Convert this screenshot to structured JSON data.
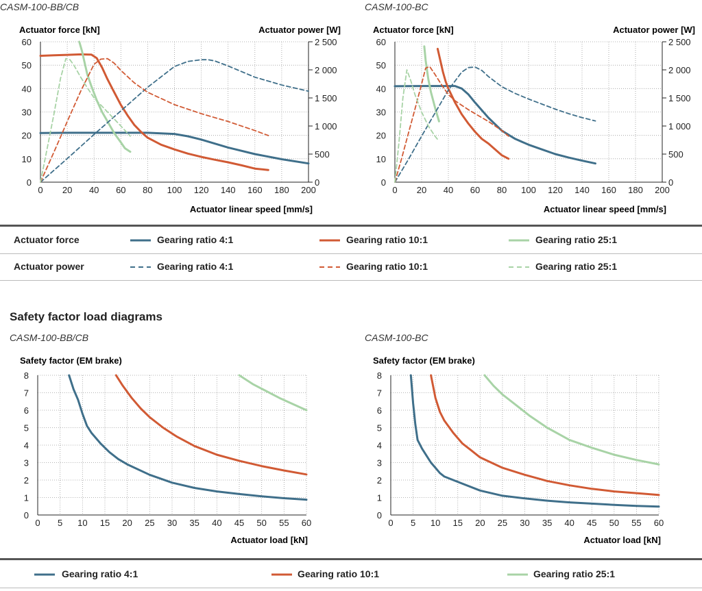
{
  "colors": {
    "g4": "#3f6f8a",
    "g10": "#d15a34",
    "g25": "#a8d3a6",
    "grid": "#9a9a9a"
  },
  "top_charts": [
    {
      "title": "CASM-100-BB/CB",
      "left_axis_label": "Actuator force [kN]",
      "right_axis_label": "Actuator power [W]",
      "x_axis_label": "Actuator linear speed [mm/s]"
    },
    {
      "title": "CASM-100-BC",
      "left_axis_label": "Actuator force [kN]",
      "right_axis_label": "Actuator power [W]",
      "x_axis_label": "Actuator linear speed [mm/s]"
    }
  ],
  "top_legend": {
    "row1_label": "Actuator force",
    "row2_label": "Actuator power",
    "g4": "Gearing ratio 4:1",
    "g10": "Gearing ratio 10:1",
    "g25": "Gearing ratio 25:1"
  },
  "section_heading": "Safety factor load diagrams",
  "bottom_charts": [
    {
      "title": "CASM-100-BB/CB",
      "y_axis_label": "Safety factor (EM brake)",
      "x_axis_label": "Actuator load [kN]"
    },
    {
      "title": "CASM-100-BC",
      "y_axis_label": "Safety factor (EM brake)",
      "x_axis_label": "Actuator load [kN]"
    }
  ],
  "bottom_legend": {
    "g4": "Gearing ratio 4:1",
    "g10": "Gearing ratio 10:1",
    "g25": "Gearing ratio 25:1"
  },
  "chart_data": [
    {
      "type": "line",
      "title": "CASM-100-BB/CB",
      "xlabel": "Actuator linear speed [mm/s]",
      "ylabel": "Actuator force [kN]",
      "y2label": "Actuator power [W]",
      "xlim": [
        0,
        200
      ],
      "ylim": [
        0,
        60
      ],
      "y2lim": [
        0,
        2500
      ],
      "xticks": [
        0,
        20,
        40,
        60,
        80,
        100,
        120,
        140,
        160,
        180,
        200
      ],
      "yticks": [
        0,
        10,
        20,
        30,
        40,
        50,
        60
      ],
      "y2ticks": [
        0,
        500,
        1000,
        1500,
        2000,
        2500
      ],
      "y2ticklabels": [
        "0",
        "500",
        "1 000",
        "1 500",
        "2 000",
        "2 500"
      ],
      "series": [
        {
          "name": "Actuator force – Gearing ratio 4:1",
          "color_key": "g4",
          "dash": false,
          "axis": "left",
          "x": [
            0,
            20,
            40,
            60,
            80,
            100,
            110,
            120,
            140,
            160,
            180,
            200
          ],
          "y": [
            21,
            21.1,
            21.1,
            21.1,
            21.1,
            20.6,
            19.6,
            18.2,
            14.8,
            12,
            9.8,
            8
          ]
        },
        {
          "name": "Actuator force – Gearing ratio 10:1",
          "color_key": "g10",
          "dash": false,
          "axis": "left",
          "x": [
            0,
            10,
            20,
            30,
            38,
            42,
            46,
            50,
            55,
            60,
            65,
            70,
            75,
            80,
            90,
            100,
            110,
            120,
            130,
            140,
            150,
            160,
            170
          ],
          "y": [
            54,
            54.2,
            54.4,
            54.6,
            54.5,
            53,
            49,
            44,
            38.5,
            33,
            28.5,
            24.5,
            21.5,
            19,
            16,
            14,
            12.2,
            10.8,
            9.6,
            8.5,
            7.2,
            5.8,
            5.2
          ]
        },
        {
          "name": "Actuator force – Gearing ratio 25:1",
          "color_key": "g25",
          "dash": false,
          "axis": "left",
          "x": [
            29,
            31,
            33,
            35,
            38,
            42,
            46,
            50,
            55,
            60,
            63,
            67
          ],
          "y": [
            60,
            56,
            51,
            46,
            41,
            35,
            30,
            26,
            21,
            17,
            14.5,
            13
          ]
        },
        {
          "name": "Actuator power – Gearing ratio 4:1",
          "color_key": "g4",
          "dash": true,
          "axis": "right",
          "x": [
            0,
            20,
            40,
            60,
            80,
            100,
            110,
            120,
            125,
            130,
            140,
            160,
            180,
            200
          ],
          "y": [
            0,
            420,
            850,
            1270,
            1690,
            2060,
            2150,
            2180,
            2180,
            2160,
            2070,
            1870,
            1730,
            1620
          ]
        },
        {
          "name": "Actuator power – Gearing ratio 10:1",
          "color_key": "g10",
          "dash": true,
          "axis": "right",
          "x": [
            0,
            10,
            20,
            30,
            40,
            45,
            50,
            55,
            60,
            70,
            80,
            100,
            120,
            140,
            160,
            170
          ],
          "y": [
            0,
            530,
            1080,
            1620,
            2100,
            2190,
            2200,
            2120,
            1990,
            1770,
            1600,
            1380,
            1220,
            1080,
            920,
            830
          ]
        },
        {
          "name": "Actuator power – Gearing ratio 25:1",
          "color_key": "g25",
          "dash": true,
          "axis": "right",
          "x": [
            0,
            5,
            10,
            15,
            19,
            22,
            25,
            30,
            35,
            40,
            50,
            60,
            67
          ],
          "y": [
            0,
            600,
            1200,
            1850,
            2200,
            2180,
            2080,
            1870,
            1680,
            1500,
            1250,
            1000,
            820
          ]
        }
      ]
    },
    {
      "type": "line",
      "title": "CASM-100-BC",
      "xlabel": "Actuator linear speed [mm/s]",
      "ylabel": "Actuator force [kN]",
      "y2label": "Actuator power [W]",
      "xlim": [
        0,
        200
      ],
      "ylim": [
        0,
        60
      ],
      "y2lim": [
        0,
        2500
      ],
      "xticks": [
        0,
        20,
        40,
        60,
        80,
        100,
        120,
        140,
        160,
        180,
        200
      ],
      "yticks": [
        0,
        10,
        20,
        30,
        40,
        50,
        60
      ],
      "y2ticks": [
        0,
        500,
        1000,
        1500,
        2000,
        2500
      ],
      "y2ticklabels": [
        "0",
        "500",
        "1 000",
        "1 500",
        "2 000",
        "2 500"
      ],
      "series": [
        {
          "name": "Actuator force – Gearing ratio 4:1",
          "color_key": "g4",
          "dash": false,
          "axis": "left",
          "x": [
            0,
            20,
            40,
            45,
            50,
            55,
            60,
            70,
            80,
            90,
            100,
            110,
            120,
            130,
            140,
            150
          ],
          "y": [
            41,
            41.1,
            41.1,
            41.1,
            40,
            37.5,
            34,
            27.5,
            22,
            18.5,
            16,
            14,
            12,
            10.5,
            9.2,
            8
          ]
        },
        {
          "name": "Actuator force – Gearing ratio 10:1",
          "color_key": "g10",
          "dash": false,
          "axis": "left",
          "x": [
            32,
            34,
            36,
            38,
            40,
            45,
            50,
            55,
            60,
            65,
            70,
            75,
            80,
            85
          ],
          "y": [
            57,
            52,
            47,
            43,
            40,
            34,
            29,
            25,
            21.5,
            18.5,
            16.5,
            14,
            11.5,
            10
          ]
        },
        {
          "name": "Actuator force – Gearing ratio 25:1",
          "color_key": "g25",
          "dash": false,
          "axis": "left",
          "x": [
            22,
            23,
            24,
            25,
            27,
            30,
            32,
            33
          ],
          "y": [
            58,
            52,
            48,
            44,
            38.5,
            32,
            28,
            26
          ]
        },
        {
          "name": "Actuator power – Gearing ratio 4:1",
          "color_key": "g4",
          "dash": true,
          "axis": "right",
          "x": [
            0,
            10,
            20,
            30,
            40,
            50,
            55,
            60,
            65,
            70,
            80,
            90,
            100,
            110,
            120,
            130,
            140,
            150
          ],
          "y": [
            0,
            400,
            820,
            1230,
            1640,
            1960,
            2040,
            2050,
            1990,
            1880,
            1700,
            1580,
            1480,
            1390,
            1300,
            1220,
            1150,
            1090
          ]
        },
        {
          "name": "Actuator power – Gearing ratio 10:1",
          "color_key": "g10",
          "dash": true,
          "axis": "right",
          "x": [
            0,
            5,
            10,
            15,
            20,
            23,
            26,
            30,
            35,
            40,
            45,
            50,
            55,
            60,
            70,
            80,
            85
          ],
          "y": [
            0,
            420,
            860,
            1300,
            1750,
            2030,
            2060,
            1920,
            1730,
            1560,
            1450,
            1370,
            1290,
            1220,
            1080,
            920,
            820
          ]
        },
        {
          "name": "Actuator power – Gearing ratio 25:1",
          "color_key": "g25",
          "dash": true,
          "axis": "right",
          "x": [
            0,
            3,
            6,
            9,
            12,
            15,
            20,
            25,
            30,
            33
          ],
          "y": [
            0,
            700,
            1500,
            2000,
            1800,
            1560,
            1250,
            1000,
            820,
            730
          ]
        }
      ]
    },
    {
      "type": "line",
      "title": "CASM-100-BB/CB",
      "xlabel": "Actuator load [kN]",
      "ylabel": "Safety factor (EM brake)",
      "xlim": [
        0,
        60
      ],
      "ylim": [
        0,
        8
      ],
      "xticks": [
        0,
        5,
        10,
        15,
        20,
        25,
        30,
        35,
        40,
        45,
        50,
        55,
        60
      ],
      "yticks": [
        0,
        1,
        2,
        3,
        4,
        5,
        6,
        7,
        8
      ],
      "series": [
        {
          "name": "Gearing ratio 4:1",
          "color_key": "g4",
          "dash": false,
          "x": [
            7,
            8,
            9,
            10,
            11,
            12,
            14,
            16,
            18,
            20,
            25,
            30,
            35,
            40,
            45,
            50,
            55,
            60
          ],
          "y": [
            8,
            7.2,
            6.6,
            5.8,
            5.1,
            4.7,
            4.1,
            3.6,
            3.2,
            2.9,
            2.3,
            1.85,
            1.55,
            1.35,
            1.2,
            1.07,
            0.96,
            0.88
          ]
        },
        {
          "name": "Gearing ratio 10:1",
          "color_key": "g10",
          "dash": false,
          "x": [
            17.5,
            19,
            21,
            23,
            25,
            28,
            31,
            35,
            40,
            45,
            50,
            55,
            60
          ],
          "y": [
            8,
            7.4,
            6.7,
            6.1,
            5.6,
            5.0,
            4.5,
            3.95,
            3.45,
            3.1,
            2.8,
            2.55,
            2.32
          ]
        },
        {
          "name": "Gearing ratio 25:1",
          "color_key": "g25",
          "dash": false,
          "x": [
            45,
            48,
            51,
            54,
            57,
            60
          ],
          "y": [
            8,
            7.5,
            7.1,
            6.7,
            6.35,
            6.0
          ]
        }
      ]
    },
    {
      "type": "line",
      "title": "CASM-100-BC",
      "xlabel": "Actuator load [kN]",
      "ylabel": "Safety factor (EM brake)",
      "xlim": [
        0,
        60
      ],
      "ylim": [
        0,
        8
      ],
      "xticks": [
        0,
        5,
        10,
        15,
        20,
        25,
        30,
        35,
        40,
        45,
        50,
        55,
        60
      ],
      "yticks": [
        0,
        1,
        2,
        3,
        4,
        5,
        6,
        7,
        8
      ],
      "series": [
        {
          "name": "Gearing ratio 4:1",
          "color_key": "g4",
          "dash": false,
          "x": [
            4.5,
            5,
            5.5,
            6,
            7,
            8,
            9,
            10,
            11,
            12,
            15,
            20,
            25,
            30,
            35,
            40,
            45,
            50,
            55,
            60
          ],
          "y": [
            8,
            6.4,
            5.2,
            4.3,
            3.8,
            3.4,
            3.0,
            2.7,
            2.4,
            2.2,
            1.9,
            1.4,
            1.1,
            0.95,
            0.82,
            0.72,
            0.65,
            0.58,
            0.52,
            0.48
          ]
        },
        {
          "name": "Gearing ratio 10:1",
          "color_key": "g10",
          "dash": false,
          "x": [
            9,
            10,
            11,
            12,
            14,
            16,
            18,
            20,
            25,
            30,
            35,
            40,
            45,
            50,
            55,
            60
          ],
          "y": [
            8,
            6.7,
            5.9,
            5.4,
            4.7,
            4.1,
            3.7,
            3.3,
            2.7,
            2.3,
            1.95,
            1.7,
            1.5,
            1.35,
            1.25,
            1.15
          ]
        },
        {
          "name": "Gearing ratio 25:1",
          "color_key": "g25",
          "dash": false,
          "x": [
            21,
            23,
            25,
            28,
            31,
            35,
            40,
            45,
            50,
            55,
            60
          ],
          "y": [
            8,
            7.4,
            6.9,
            6.3,
            5.7,
            5.0,
            4.3,
            3.85,
            3.45,
            3.15,
            2.9
          ]
        }
      ]
    }
  ]
}
